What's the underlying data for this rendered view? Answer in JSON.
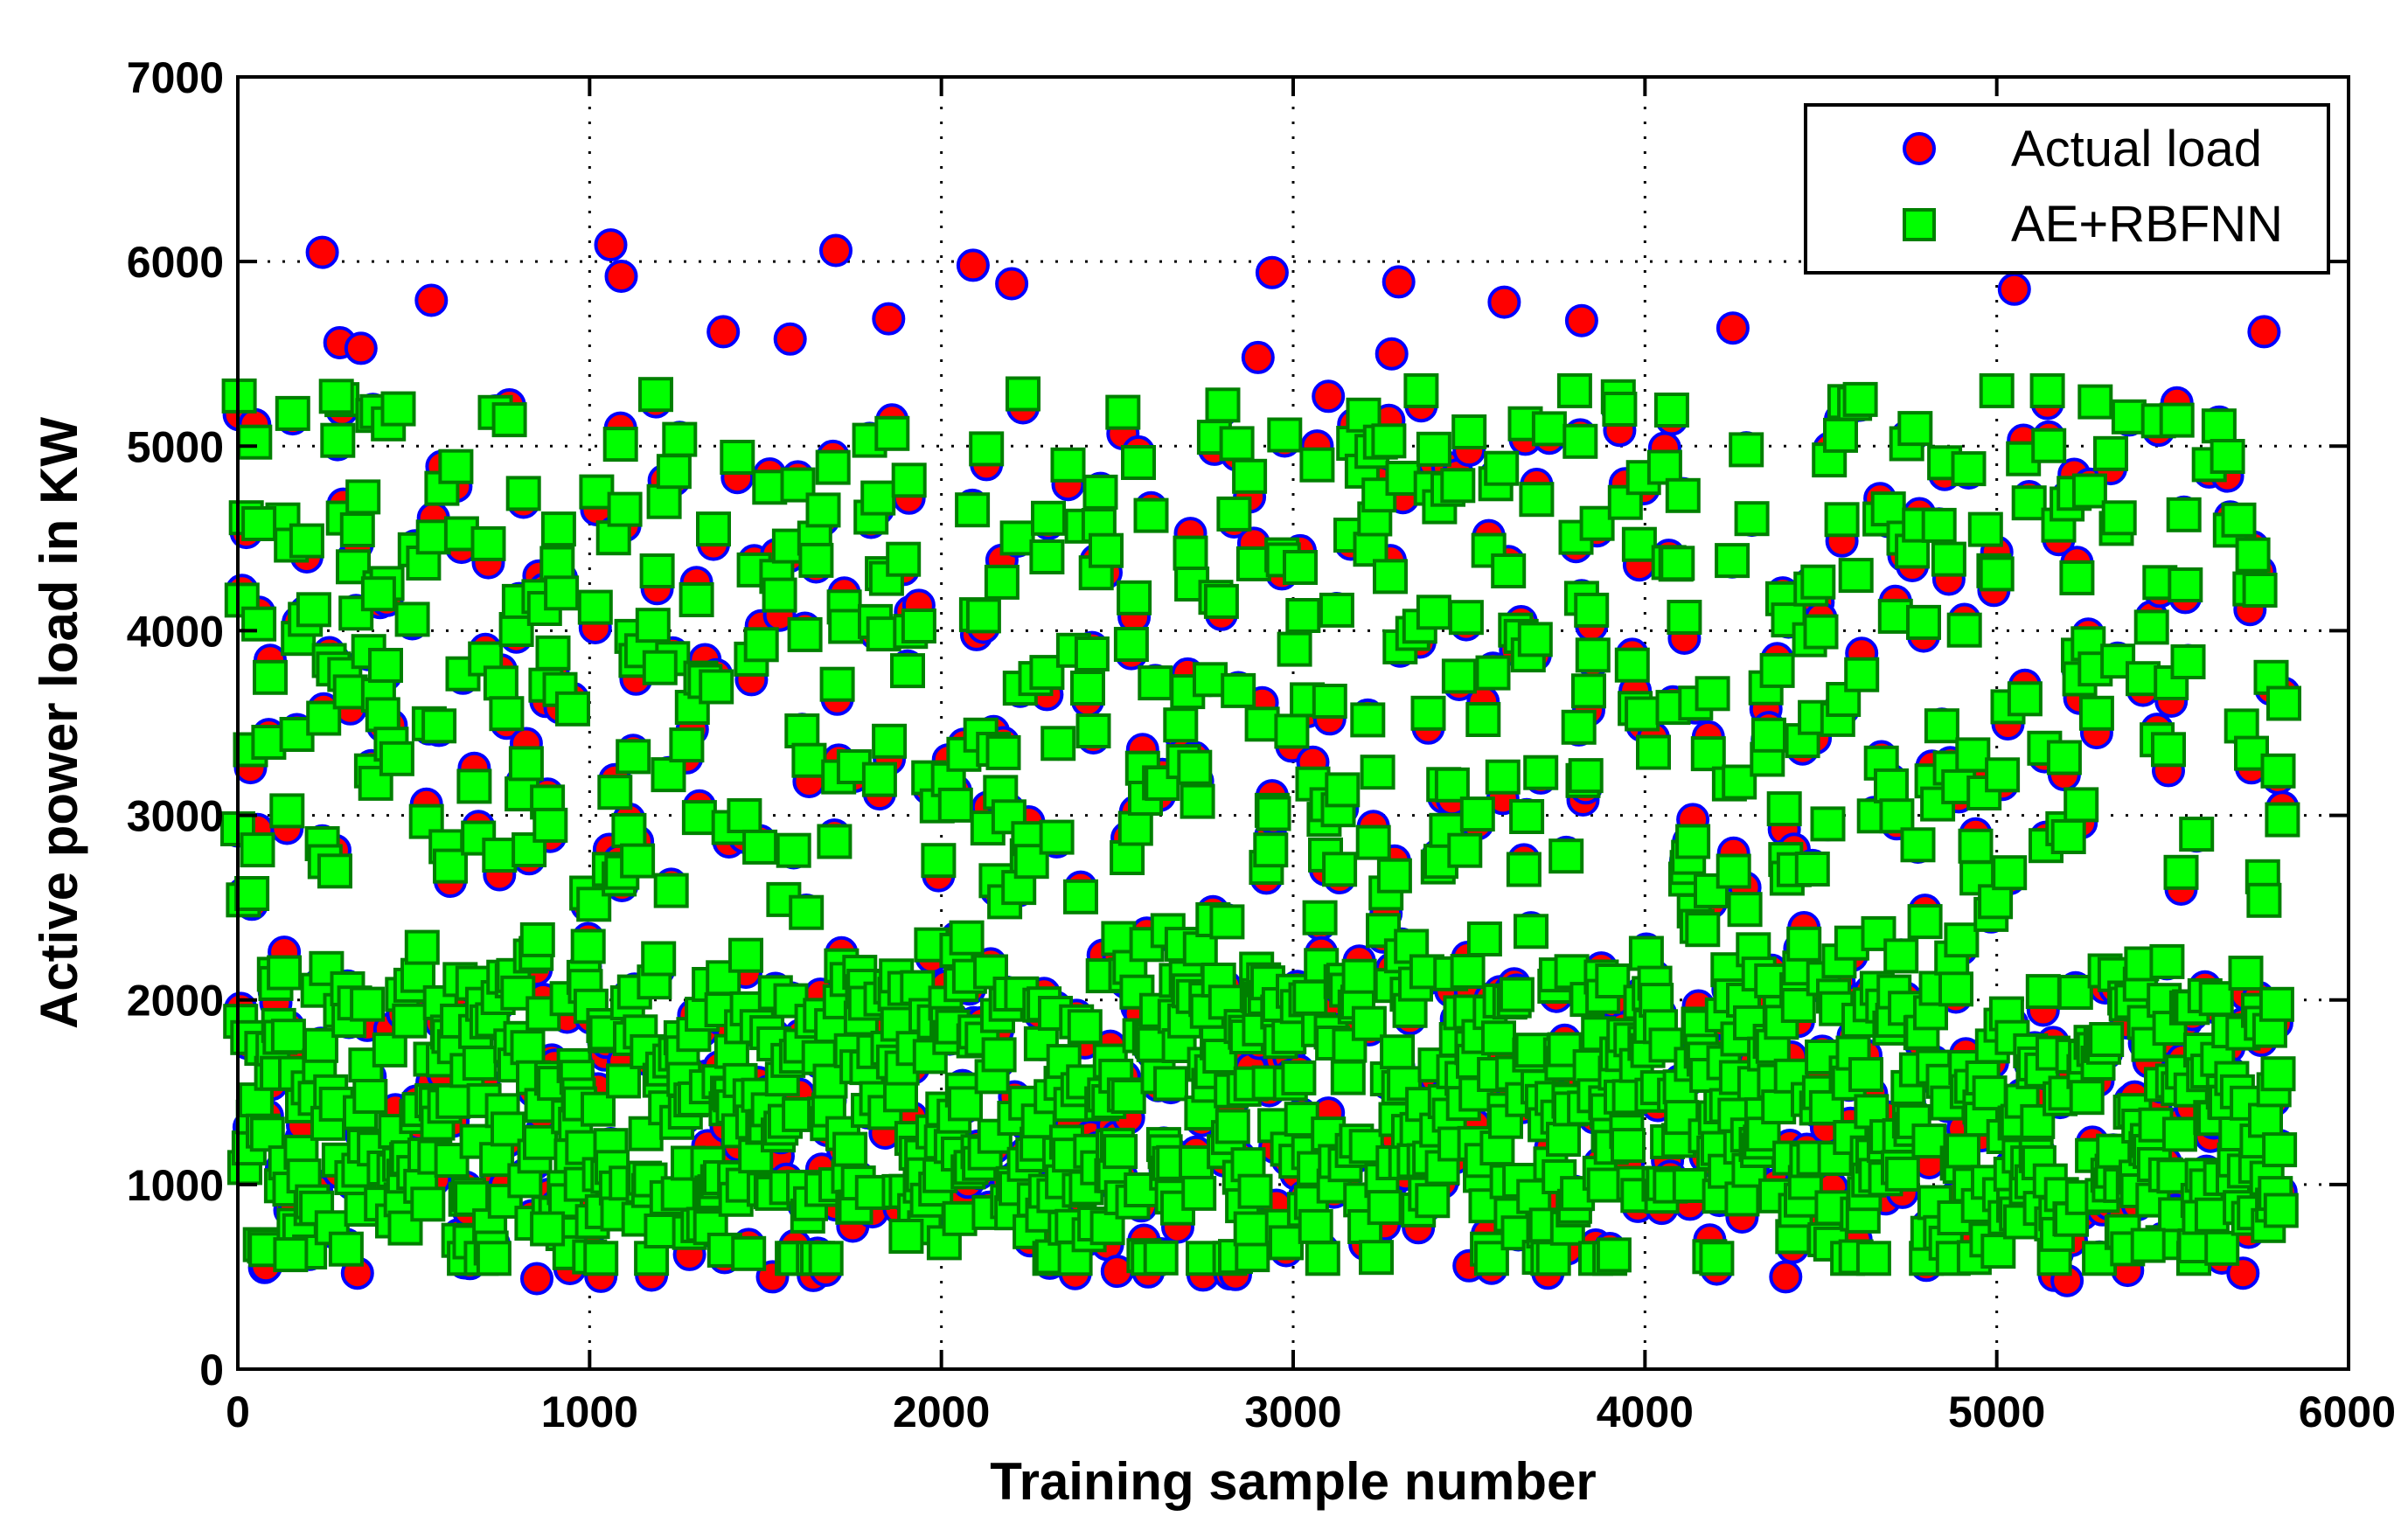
{
  "chart_data": {
    "type": "scatter",
    "title": "",
    "xlabel": "Training sample number",
    "ylabel": "Active power load in KW",
    "xlim": [
      0,
      6000
    ],
    "ylim": [
      0,
      7000
    ],
    "xticks": [
      "0",
      "1000",
      "2000",
      "3000",
      "4000",
      "5000",
      "6000"
    ],
    "yticks": [
      "0",
      "1000",
      "2000",
      "3000",
      "4000",
      "5000",
      "6000",
      "7000"
    ],
    "grid": true,
    "legend_position": "top-right",
    "n_samples": 5820,
    "series": [
      {
        "name": "Actual load",
        "marker": "circle",
        "fill": "#ff0000",
        "edge": "#0000ff",
        "value_range": [
          450,
          6100
        ],
        "sample_points": [
          [
            240,
            6050
          ],
          [
            1060,
            6090
          ],
          [
            1090,
            5920
          ],
          [
            1700,
            6060
          ],
          [
            2090,
            5980
          ],
          [
            2940,
            5940
          ],
          [
            3300,
            5890
          ],
          [
            5050,
            5850
          ],
          [
            550,
            5790
          ],
          [
            3600,
            5780
          ],
          [
            290,
            5560
          ],
          [
            350,
            5530
          ],
          [
            1380,
            5620
          ],
          [
            1570,
            5580
          ],
          [
            1850,
            5690
          ],
          [
            2200,
            5880
          ],
          [
            3820,
            5680
          ],
          [
            4250,
            5640
          ],
          [
            5760,
            5620
          ],
          [
            2900,
            5480
          ],
          [
            3100,
            5270
          ],
          [
            3280,
            5500
          ],
          [
            850,
            490
          ],
          [
            340,
            520
          ],
          [
            1520,
            500
          ],
          [
            2500,
            530
          ],
          [
            3500,
            560
          ],
          [
            4400,
            500
          ],
          [
            5200,
            480
          ],
          [
            5700,
            520
          ]
        ]
      },
      {
        "name": "AE+RBFNN",
        "marker": "square",
        "fill": "#00ff00",
        "edge": "#008000",
        "value_range": [
          600,
          5300
        ],
        "sample_points": [
          [
            280,
            5270
          ],
          [
            3800,
            5300
          ],
          [
            5000,
            5300
          ],
          [
            5280,
            5240
          ],
          [
            60,
            4580
          ],
          [
            400,
            4200
          ],
          [
            1200,
            3800
          ],
          [
            2300,
            4400
          ],
          [
            3400,
            4100
          ],
          [
            4600,
            4300
          ],
          [
            150,
            620
          ],
          [
            880,
            760
          ],
          [
            1900,
            720
          ],
          [
            2880,
            760
          ],
          [
            4650,
            600
          ],
          [
            5430,
            670
          ],
          [
            5800,
            1600
          ]
        ]
      }
    ]
  }
}
